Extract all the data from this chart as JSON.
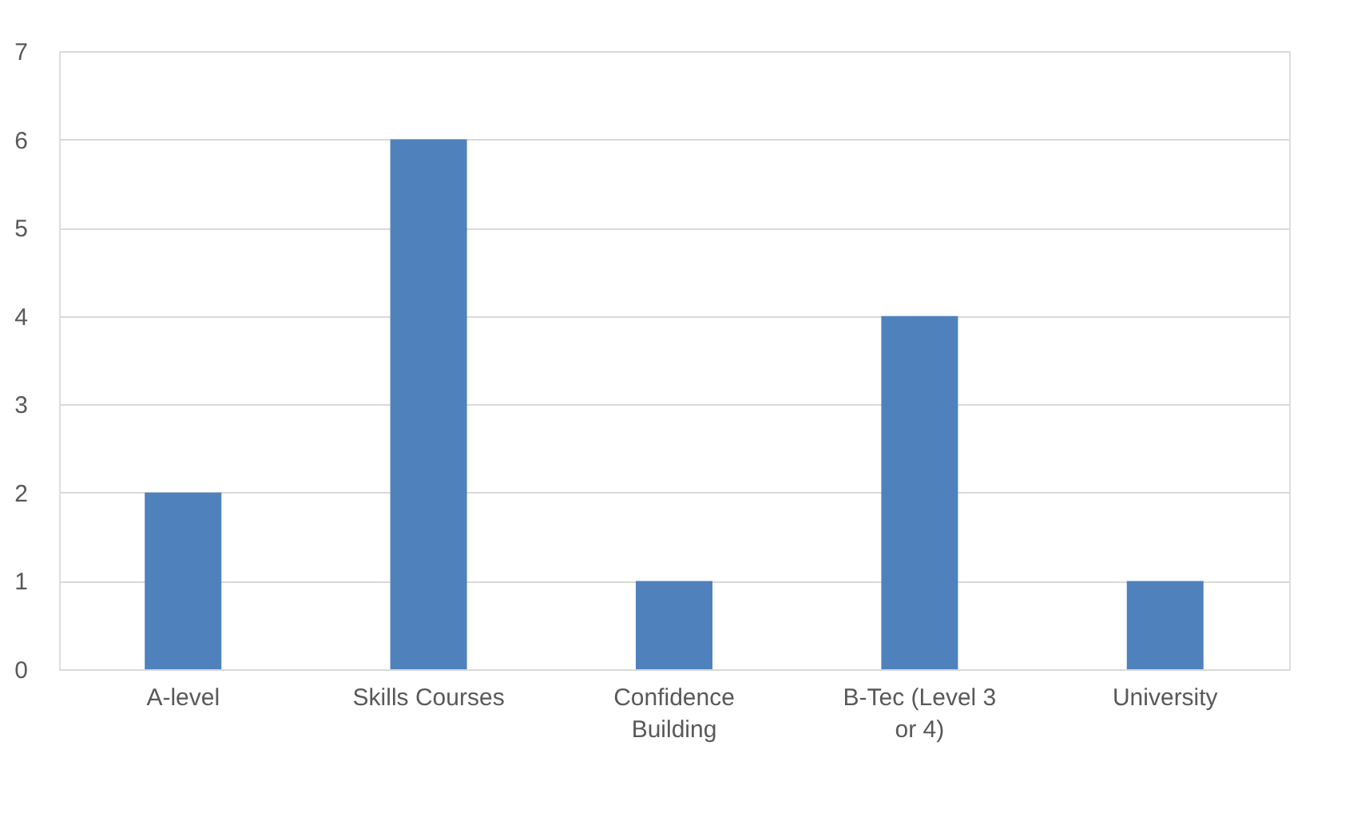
{
  "chart_data": {
    "type": "bar",
    "categories": [
      "A-level",
      "Skills Courses",
      "Confidence Building",
      "B-Tec (Level 3 or 4)",
      "University"
    ],
    "values": [
      2,
      6,
      1,
      4,
      1
    ],
    "color": "#4f81bd",
    "ylim": [
      0,
      7
    ],
    "yticks": [
      0,
      1,
      2,
      3,
      4,
      5,
      6,
      7
    ],
    "grid": "y"
  }
}
